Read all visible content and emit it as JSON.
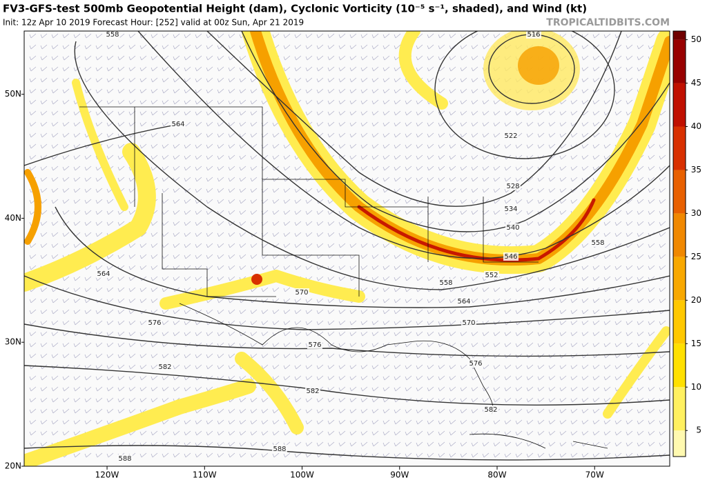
{
  "header": {
    "title": "FV3-GFS-test 500mb Geopotential Height (dam), Cyclonic Vorticity (10⁻⁵ s⁻¹, shaded), and Wind (kt)",
    "subtitle": "Init: 12z Apr 10 2019   Forecast Hour: [252]   valid at 00z Sun, Apr 21 2019",
    "brand": "TROPICALTIDBITS.COM"
  },
  "map": {
    "lon_range": [
      -128.5,
      -62.3
    ],
    "lat_range": [
      20,
      55.1
    ],
    "lon_ticks": [
      {
        "value": -120,
        "label": "120W"
      },
      {
        "value": -110,
        "label": "110W"
      },
      {
        "value": -100,
        "label": "100W"
      },
      {
        "value": -90,
        "label": "90W"
      },
      {
        "value": -80,
        "label": "80W"
      },
      {
        "value": -70,
        "label": "70W"
      }
    ],
    "lat_ticks": [
      {
        "value": 20,
        "label": "20N"
      },
      {
        "value": 30,
        "label": "30N"
      },
      {
        "value": 40,
        "label": "40N"
      },
      {
        "value": 50,
        "label": "50N"
      }
    ],
    "contour_labels": [
      558,
      516,
      564,
      522,
      528,
      534,
      540,
      558,
      546,
      552,
      564,
      558,
      570,
      564,
      576,
      570,
      576,
      582,
      576,
      582,
      582,
      588,
      588
    ]
  },
  "colorbar": {
    "range": [
      2,
      51
    ],
    "ticks": [
      5,
      10,
      15,
      20,
      25,
      30,
      35,
      40,
      45,
      50
    ],
    "colors": [
      "#fff9b0",
      "#fff060",
      "#ffe000",
      "#ffc800",
      "#f8a800",
      "#f08800",
      "#e86000",
      "#d83000",
      "#c01000",
      "#980000",
      "#700000"
    ]
  }
}
